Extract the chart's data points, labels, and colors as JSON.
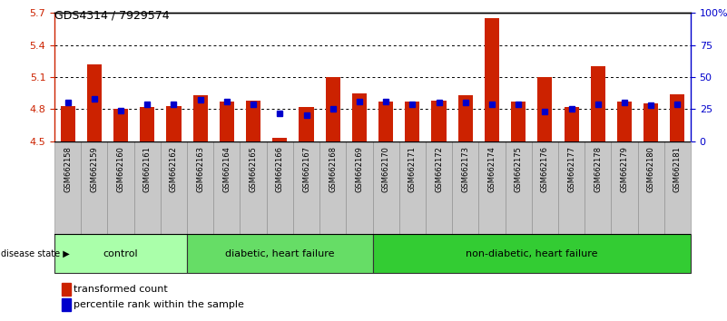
{
  "title": "GDS4314 / 7929574",
  "samples": [
    "GSM662158",
    "GSM662159",
    "GSM662160",
    "GSM662161",
    "GSM662162",
    "GSM662163",
    "GSM662164",
    "GSM662165",
    "GSM662166",
    "GSM662167",
    "GSM662168",
    "GSM662169",
    "GSM662170",
    "GSM662171",
    "GSM662172",
    "GSM662173",
    "GSM662174",
    "GSM662175",
    "GSM662176",
    "GSM662177",
    "GSM662178",
    "GSM662179",
    "GSM662180",
    "GSM662181"
  ],
  "bar_values": [
    4.83,
    5.22,
    4.8,
    4.82,
    4.83,
    4.93,
    4.87,
    4.88,
    4.53,
    4.82,
    5.1,
    4.95,
    4.87,
    4.87,
    4.88,
    4.93,
    5.65,
    4.87,
    5.1,
    4.82,
    5.2,
    4.87,
    4.85,
    4.94
  ],
  "percentile_values": [
    30,
    33,
    24,
    29,
    29,
    32,
    31,
    29,
    22,
    20,
    25,
    31,
    31,
    29,
    30,
    30,
    29,
    29,
    23,
    25,
    29,
    30,
    28,
    29
  ],
  "bar_bottom": 4.5,
  "ylim_left": [
    4.5,
    5.7
  ],
  "ylim_right": [
    0,
    100
  ],
  "yticks_left": [
    4.5,
    4.8,
    5.1,
    5.4,
    5.7
  ],
  "yticks_right": [
    0,
    25,
    50,
    75,
    100
  ],
  "ytick_labels_right": [
    "0",
    "25",
    "50",
    "75",
    "100%"
  ],
  "bar_color": "#cc2200",
  "dot_color": "#0000cc",
  "axis_color_left": "#cc2200",
  "axis_color_right": "#0000cc",
  "groups": [
    {
      "label": "control",
      "start": 0,
      "end": 5,
      "color": "#aaffaa"
    },
    {
      "label": "diabetic, heart failure",
      "start": 5,
      "end": 12,
      "color": "#66dd66"
    },
    {
      "label": "non-diabetic, heart failure",
      "start": 12,
      "end": 24,
      "color": "#33cc33"
    }
  ],
  "disease_state_label": "disease state",
  "legend_bar_label": "transformed count",
  "legend_dot_label": "percentile rank within the sample",
  "bg_color": "#ffffff",
  "tick_area_color": "#c8c8c8",
  "tick_area_border_color": "#888888"
}
